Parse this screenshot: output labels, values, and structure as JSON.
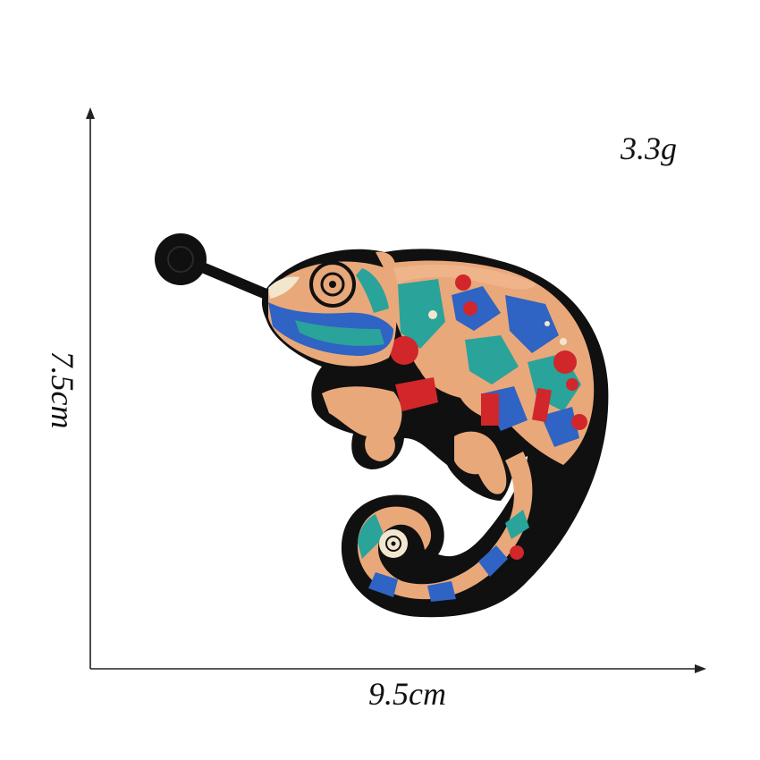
{
  "measurements": {
    "weight": "3.3g",
    "width": "9.5cm",
    "height": "7.5cm"
  },
  "patch": {
    "subject": "chameleon",
    "colors": {
      "outline": "#101010",
      "tan": "#e9a87a",
      "teal": "#2aa39a",
      "blue": "#2f63c4",
      "red": "#d1262a",
      "cream": "#f3e6cf"
    }
  }
}
